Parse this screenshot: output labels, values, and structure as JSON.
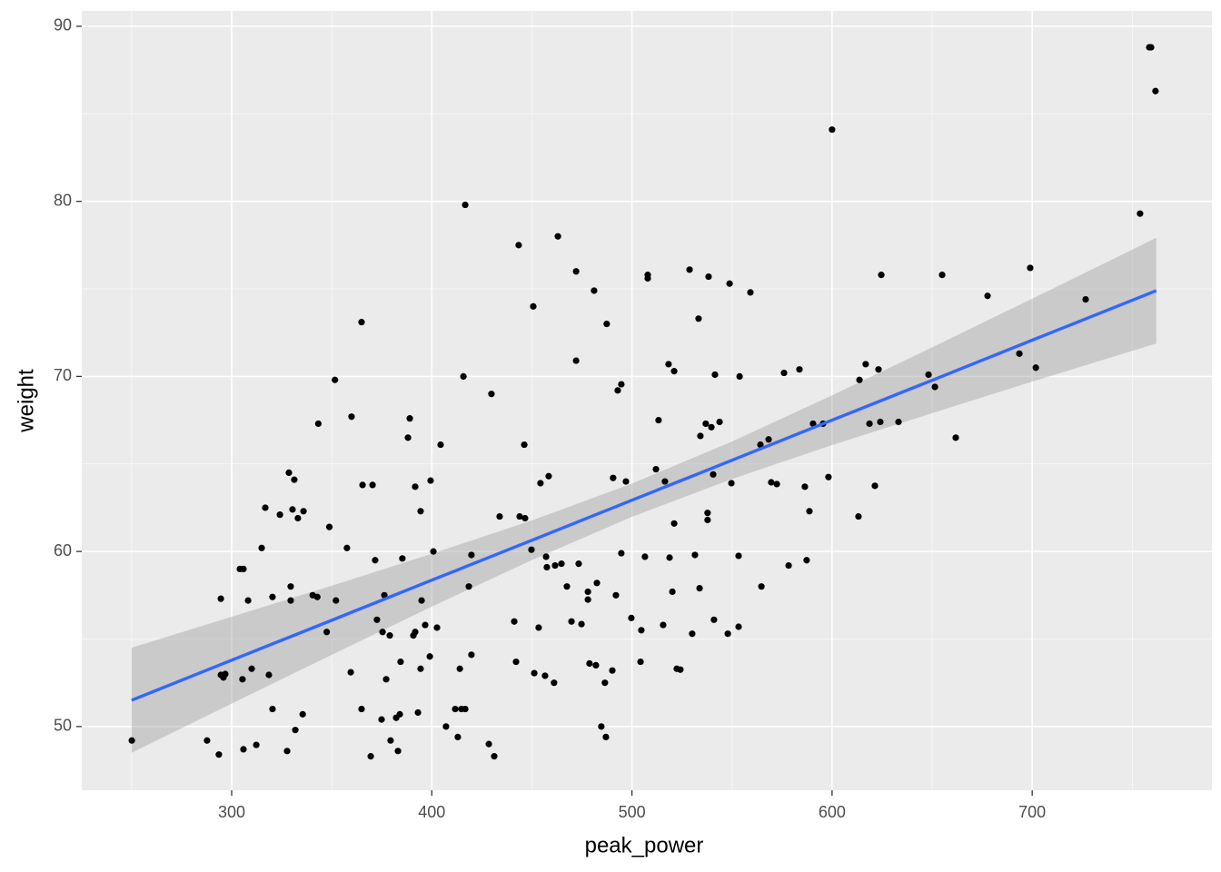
{
  "chart_data": {
    "type": "scatter",
    "x_label": "peak_power",
    "y_label": "weight",
    "xlim": [
      225.1,
      789.8
    ],
    "ylim": [
      46.36,
      90.88
    ],
    "xticks": [
      300,
      400,
      500,
      600,
      700
    ],
    "yticks": [
      50,
      60,
      70,
      80,
      90
    ],
    "x_minor_ticks": [
      250,
      350,
      450,
      550,
      650,
      750
    ],
    "y_minor_ticks": [
      55,
      65,
      75,
      85
    ],
    "grid": true,
    "point_color": "#000000",
    "x": [
      250.1,
      294.6,
      295.9,
      296.8,
      294.6,
      287.7,
      293.6,
      304.1,
      305.9,
      305.4,
      305.9,
      308.2,
      310.0,
      312.3,
      315.0,
      316.8,
      318.6,
      320.4,
      320.4,
      324.1,
      327.7,
      328.6,
      329.5,
      329.5,
      330.4,
      331.3,
      333.1,
      335.9,
      331.8,
      335.5,
      340.5,
      342.8,
      343.3,
      347.5,
      348.8,
      351.6,
      352.1,
      357.6,
      359.5,
      359.9,
      364.9,
      365.4,
      364.9,
      370.4,
      369.5,
      371.7,
      372.6,
      375.4,
      376.3,
      374.9,
      377.2,
      379.0,
      379.4,
      382.2,
      383.1,
      384.0,
      384.4,
      385.3,
      388.1,
      389.0,
      390.8,
      391.7,
      391.7,
      393.1,
      394.4,
      394.4,
      394.9,
      396.7,
      399.0,
      399.4,
      400.8,
      402.6,
      404.4,
      407.1,
      411.7,
      413.0,
      414.0,
      414.8,
      415.8,
      416.7,
      416.7,
      418.5,
      419.8,
      419.8,
      428.5,
      429.8,
      431.2,
      433.9,
      441.2,
      442.1,
      443.4,
      443.9,
      446.2,
      446.6,
      449.8,
      450.7,
      451.2,
      453.4,
      454.3,
      456.6,
      457.1,
      457.5,
      458.4,
      461.1,
      461.6,
      463.0,
      464.8,
      467.5,
      469.8,
      472.1,
      472.1,
      473.4,
      474.8,
      478.0,
      478.0,
      478.8,
      481.1,
      482.0,
      482.5,
      484.7,
      486.5,
      487.0,
      487.4,
      490.2,
      490.6,
      492.0,
      492.9,
      494.7,
      494.7,
      497.0,
      499.7,
      504.3,
      504.7,
      506.5,
      507.9,
      507.9,
      512.0,
      513.3,
      515.6,
      516.5,
      518.3,
      518.8,
      520.2,
      521.1,
      521.1,
      522.4,
      524.2,
      528.8,
      530.1,
      531.5,
      533.3,
      533.8,
      534.2,
      536.9,
      537.8,
      537.8,
      538.3,
      539.7,
      540.6,
      541.0,
      541.5,
      543.8,
      547.9,
      548.8,
      549.7,
      553.3,
      553.3,
      553.8,
      559.2,
      564.2,
      564.7,
      568.3,
      569.6,
      572.4,
      576.0,
      578.3,
      583.7,
      586.4,
      587.3,
      588.7,
      590.5,
      595.5,
      598.2,
      600.0,
      613.2,
      613.7,
      616.8,
      618.7,
      621.4,
      623.2,
      624.1,
      624.6,
      633.2,
      648.2,
      651.4,
      655.0,
      661.8,
      677.7,
      693.6,
      699.0,
      701.8,
      726.7,
      753.9,
      758.5,
      759.4,
      761.6
    ],
    "y": [
      49.2,
      52.95,
      52.8,
      53.0,
      57.3,
      49.2,
      48.4,
      59.0,
      59.0,
      52.7,
      48.7,
      57.2,
      53.3,
      48.95,
      60.2,
      62.5,
      52.95,
      57.4,
      51.0,
      62.1,
      48.6,
      64.5,
      58.0,
      57.2,
      62.4,
      64.1,
      61.9,
      62.3,
      49.8,
      50.7,
      57.5,
      57.4,
      67.3,
      55.4,
      61.4,
      69.8,
      57.2,
      60.2,
      53.1,
      67.7,
      73.1,
      63.8,
      51.0,
      63.8,
      48.3,
      59.5,
      56.1,
      55.4,
      57.5,
      50.4,
      52.7,
      55.2,
      49.2,
      50.5,
      48.6,
      50.7,
      53.7,
      59.6,
      66.5,
      67.6,
      55.2,
      63.7,
      55.4,
      50.8,
      62.3,
      53.3,
      57.2,
      55.8,
      54.0,
      64.05,
      60.0,
      55.65,
      66.1,
      50.0,
      51.0,
      49.4,
      53.3,
      51.0,
      70.0,
      51.0,
      79.8,
      58.0,
      59.8,
      54.1,
      49.0,
      69.0,
      48.3,
      62.0,
      56.0,
      53.7,
      77.5,
      62.0,
      66.1,
      61.9,
      60.1,
      74.0,
      53.05,
      55.65,
      63.9,
      52.9,
      59.7,
      59.1,
      64.3,
      52.5,
      59.2,
      78.0,
      59.3,
      58.0,
      56.0,
      76.0,
      70.9,
      59.3,
      55.85,
      57.7,
      57.25,
      53.6,
      74.9,
      53.5,
      58.2,
      50.0,
      52.5,
      49.4,
      73.0,
      53.2,
      64.2,
      57.5,
      69.2,
      69.55,
      59.9,
      64.0,
      56.2,
      53.7,
      55.5,
      59.7,
      75.6,
      75.8,
      64.7,
      67.5,
      55.8,
      64.0,
      70.7,
      59.65,
      57.7,
      70.3,
      61.6,
      53.3,
      53.25,
      76.1,
      55.3,
      59.8,
      73.3,
      57.9,
      66.6,
      67.3,
      62.2,
      61.8,
      75.7,
      67.1,
      64.4,
      56.1,
      70.1,
      67.4,
      55.3,
      75.3,
      63.9,
      55.7,
      59.75,
      70.0,
      74.8,
      66.1,
      58.0,
      66.4,
      63.95,
      63.85,
      70.2,
      59.2,
      70.4,
      63.7,
      59.5,
      62.3,
      67.3,
      67.3,
      64.25,
      84.1,
      62.0,
      69.8,
      70.7,
      67.3,
      63.75,
      70.4,
      67.4,
      75.8,
      67.4,
      70.1,
      69.4,
      75.8,
      66.5,
      74.6,
      71.3,
      76.2,
      70.5,
      74.4,
      79.3,
      88.8,
      88.8,
      86.3
    ],
    "smooth": {
      "line_color": "#3366FF",
      "band_color": "#999999",
      "x": [
        250,
        300,
        350,
        400,
        450,
        500,
        550,
        600,
        650,
        700,
        750,
        762
      ],
      "y": [
        51.5,
        53.79,
        56.07,
        58.36,
        60.64,
        62.93,
        65.21,
        67.5,
        69.78,
        72.07,
        74.35,
        74.9
      ],
      "lower": [
        48.5,
        51.31,
        54.1,
        56.85,
        59.51,
        61.98,
        64.14,
        66.08,
        67.9,
        69.7,
        71.46,
        71.88
      ],
      "upper": [
        54.5,
        56.27,
        58.04,
        59.87,
        61.77,
        63.88,
        66.28,
        68.92,
        71.66,
        74.44,
        77.24,
        77.92
      ]
    }
  }
}
